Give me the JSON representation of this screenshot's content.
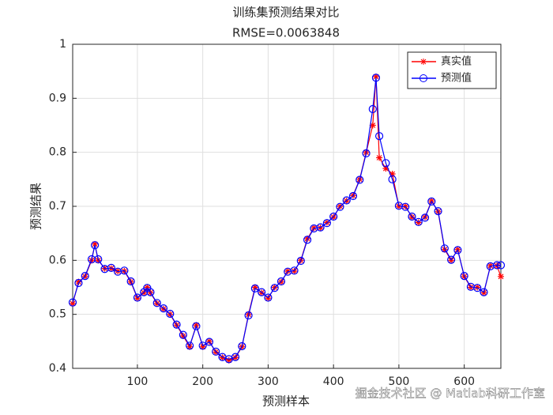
{
  "chart_data": {
    "type": "line",
    "title": "训练集预测结果对比",
    "subtitle": "RMSE=0.0063848",
    "x_label": "预测样本",
    "y_label": "预测结果",
    "x": [
      1,
      10,
      20,
      30,
      35,
      40,
      50,
      60,
      70,
      80,
      90,
      100,
      110,
      115,
      120,
      130,
      140,
      150,
      160,
      170,
      180,
      190,
      200,
      210,
      220,
      230,
      240,
      250,
      260,
      270,
      280,
      290,
      300,
      310,
      320,
      330,
      340,
      350,
      360,
      370,
      380,
      390,
      400,
      410,
      420,
      430,
      440,
      450,
      460,
      465,
      470,
      480,
      490,
      500,
      510,
      520,
      530,
      540,
      550,
      560,
      570,
      580,
      590,
      600,
      610,
      620,
      630,
      640,
      650,
      656
    ],
    "series": [
      {
        "name": "真实值",
        "color": "#ff0000",
        "marker": "star",
        "values": [
          0.52,
          0.56,
          0.57,
          0.6,
          0.63,
          0.6,
          0.585,
          0.585,
          0.58,
          0.58,
          0.56,
          0.53,
          0.54,
          0.55,
          0.54,
          0.52,
          0.51,
          0.5,
          0.48,
          0.46,
          0.44,
          0.48,
          0.44,
          0.45,
          0.43,
          0.42,
          0.415,
          0.42,
          0.44,
          0.5,
          0.55,
          0.54,
          0.53,
          0.55,
          0.56,
          0.58,
          0.58,
          0.6,
          0.64,
          0.66,
          0.66,
          0.67,
          0.68,
          0.7,
          0.71,
          0.72,
          0.75,
          0.8,
          0.85,
          0.94,
          0.79,
          0.77,
          0.76,
          0.7,
          0.7,
          0.68,
          0.67,
          0.68,
          0.71,
          0.69,
          0.62,
          0.6,
          0.62,
          0.57,
          0.55,
          0.55,
          0.54,
          0.59,
          0.59,
          0.57
        ]
      },
      {
        "name": "预测值",
        "color": "#0000ff",
        "marker": "circle",
        "values": [
          0.522,
          0.558,
          0.571,
          0.602,
          0.628,
          0.602,
          0.584,
          0.586,
          0.579,
          0.581,
          0.561,
          0.531,
          0.541,
          0.549,
          0.541,
          0.521,
          0.511,
          0.501,
          0.481,
          0.462,
          0.442,
          0.478,
          0.442,
          0.449,
          0.431,
          0.421,
          0.417,
          0.421,
          0.441,
          0.498,
          0.548,
          0.541,
          0.531,
          0.549,
          0.561,
          0.579,
          0.581,
          0.599,
          0.638,
          0.659,
          0.661,
          0.669,
          0.681,
          0.699,
          0.711,
          0.719,
          0.749,
          0.798,
          0.88,
          0.938,
          0.83,
          0.78,
          0.75,
          0.701,
          0.699,
          0.681,
          0.671,
          0.679,
          0.709,
          0.691,
          0.622,
          0.601,
          0.619,
          0.571,
          0.551,
          0.549,
          0.541,
          0.589,
          0.591,
          0.591
        ]
      }
    ],
    "xlim": [
      1,
      656
    ],
    "ylim": [
      0.4,
      1
    ],
    "xticks": [
      100,
      200,
      300,
      400,
      500,
      600
    ],
    "yticks": [
      0.4,
      0.5,
      0.6,
      0.7,
      0.8,
      0.9,
      1
    ],
    "grid": true,
    "legend": "northeast",
    "watermark": "掘金技术社区 @ Matlab科研工作室"
  }
}
